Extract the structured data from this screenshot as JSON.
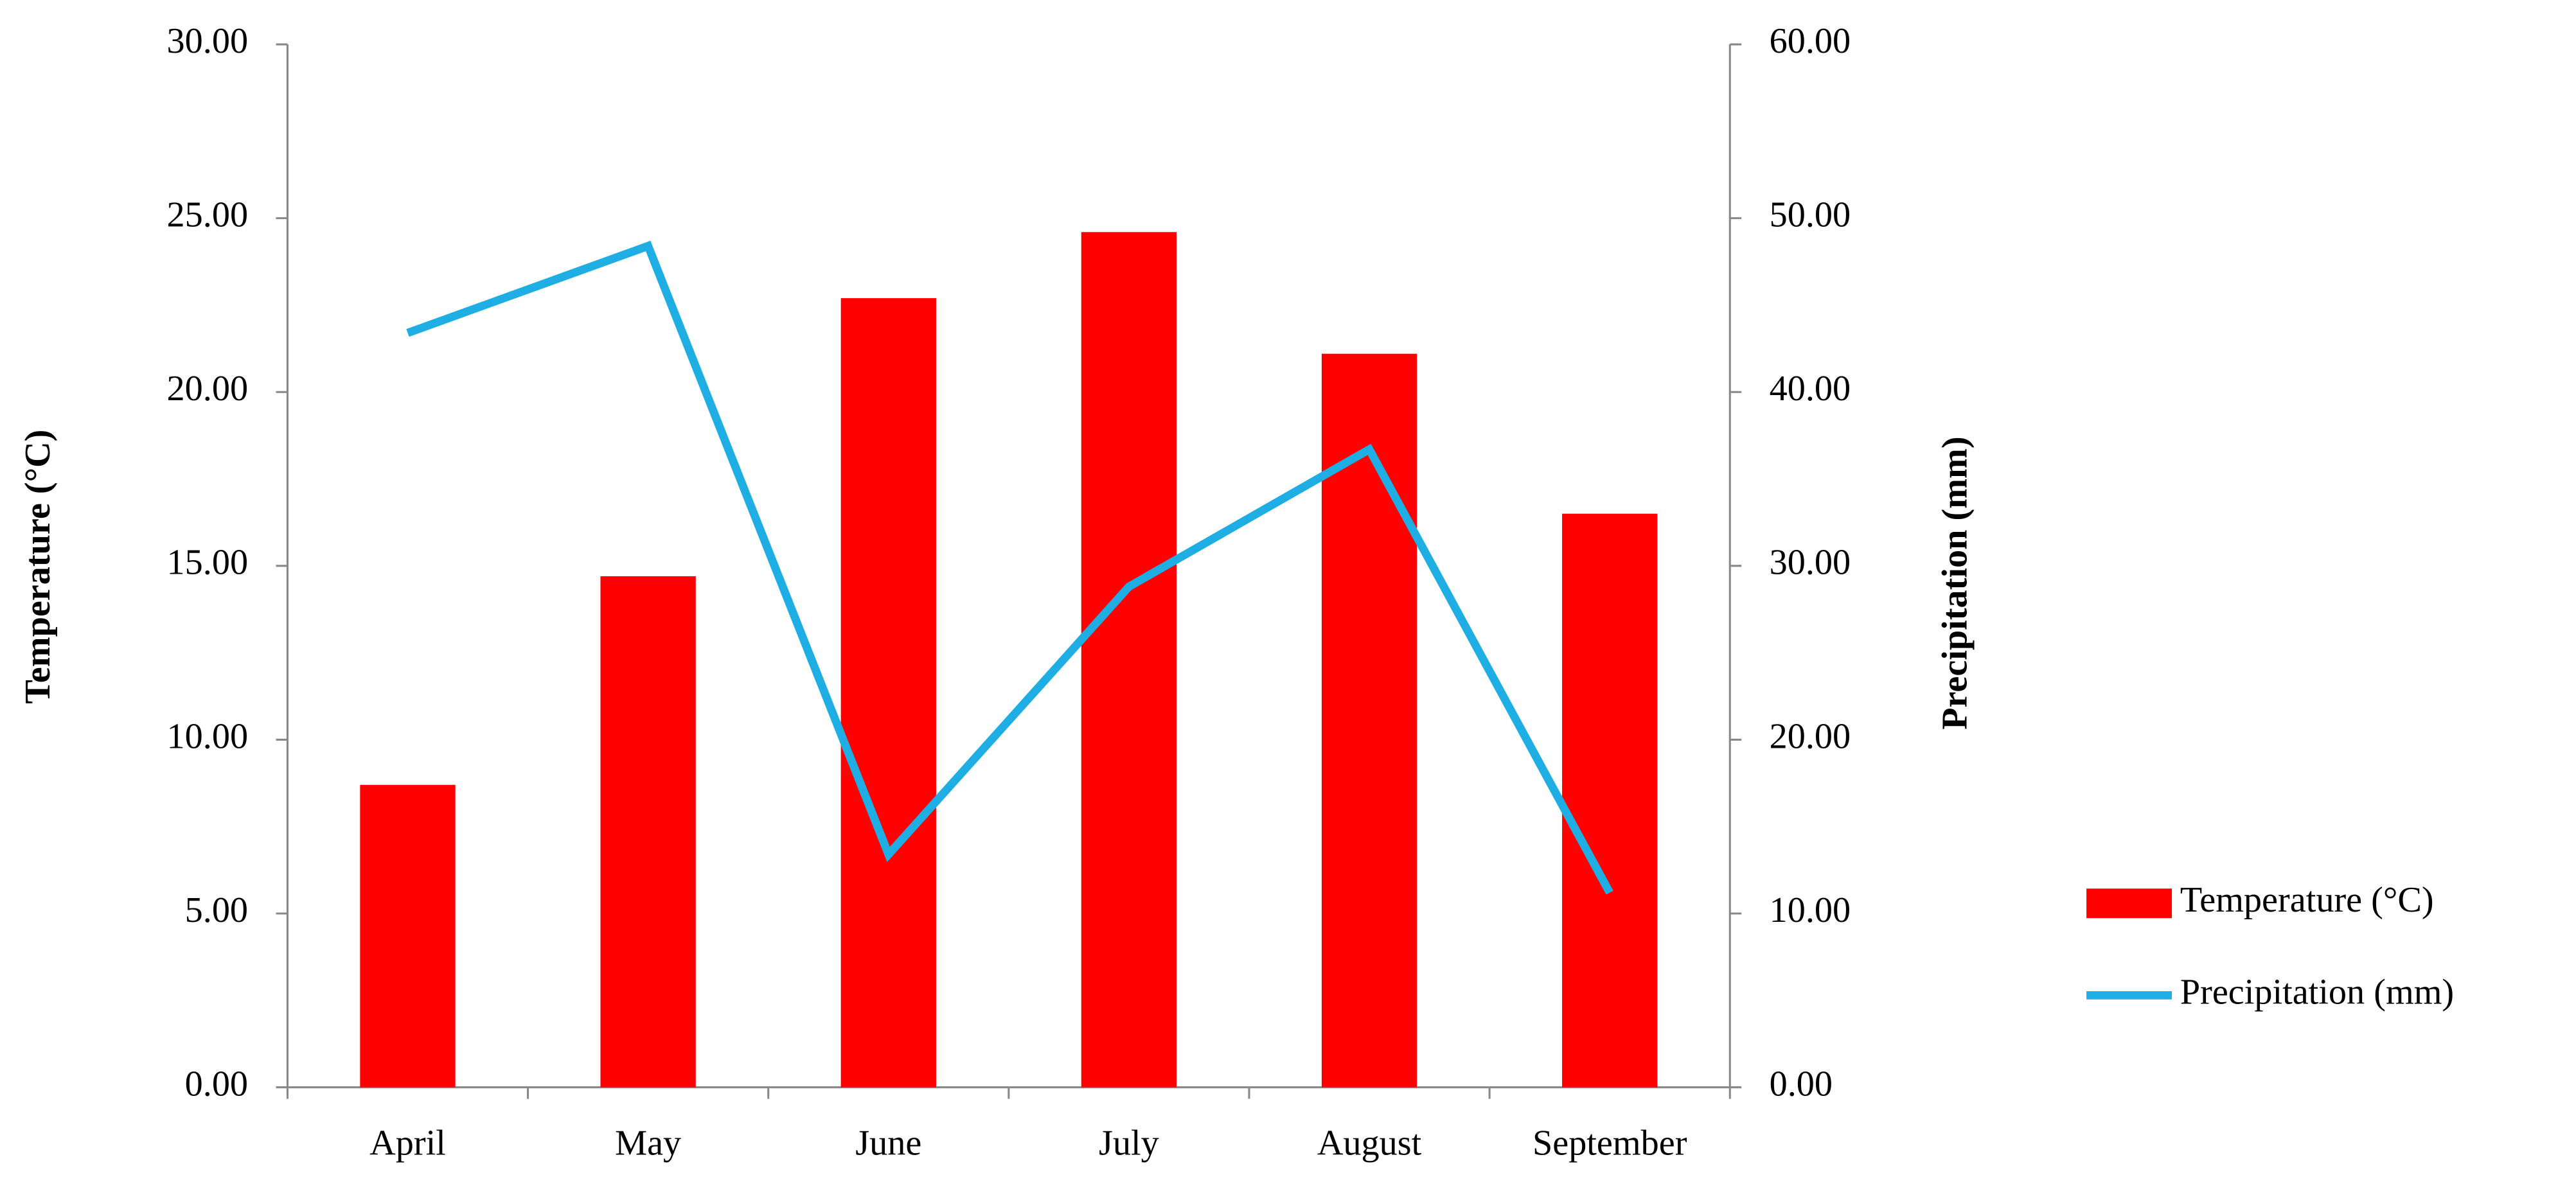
{
  "chart_data": {
    "type": "bar_line",
    "categories": [
      "April",
      "May",
      "June",
      "July",
      "August",
      "September"
    ],
    "series": [
      {
        "name": "Temperature (°C)",
        "type": "bar",
        "color": "#ff0000",
        "axis": "y",
        "values": [
          8.7,
          14.7,
          22.7,
          24.6,
          21.1,
          16.5
        ]
      },
      {
        "name": "Precipitation (mm)",
        "type": "line",
        "color": "#1eaee4",
        "axis": "y2",
        "values": [
          43.4,
          48.4,
          13.4,
          28.8,
          36.7,
          11.2
        ]
      }
    ],
    "ylabel": "Temperature (°C)",
    "y2label": "Precipitation (mm)",
    "ylim": [
      0,
      30
    ],
    "yticks": [
      {
        "value": 0,
        "label": "0.00"
      },
      {
        "value": 5,
        "label": "5.00"
      },
      {
        "value": 10,
        "label": "10.00"
      },
      {
        "value": 15,
        "label": "15.00"
      },
      {
        "value": 20,
        "label": "20.00"
      },
      {
        "value": 25,
        "label": "25.00"
      },
      {
        "value": 30,
        "label": "30.00"
      }
    ],
    "y2lim": [
      0,
      60
    ],
    "y2ticks": [
      {
        "value": 0,
        "label": "0.00"
      },
      {
        "value": 10,
        "label": "10.00"
      },
      {
        "value": 20,
        "label": "20.00"
      },
      {
        "value": 30,
        "label": "30.00"
      },
      {
        "value": 40,
        "label": "40.00"
      },
      {
        "value": 50,
        "label": "50.00"
      },
      {
        "value": 60,
        "label": "60.00"
      }
    ],
    "grid": false,
    "legend": "right"
  }
}
